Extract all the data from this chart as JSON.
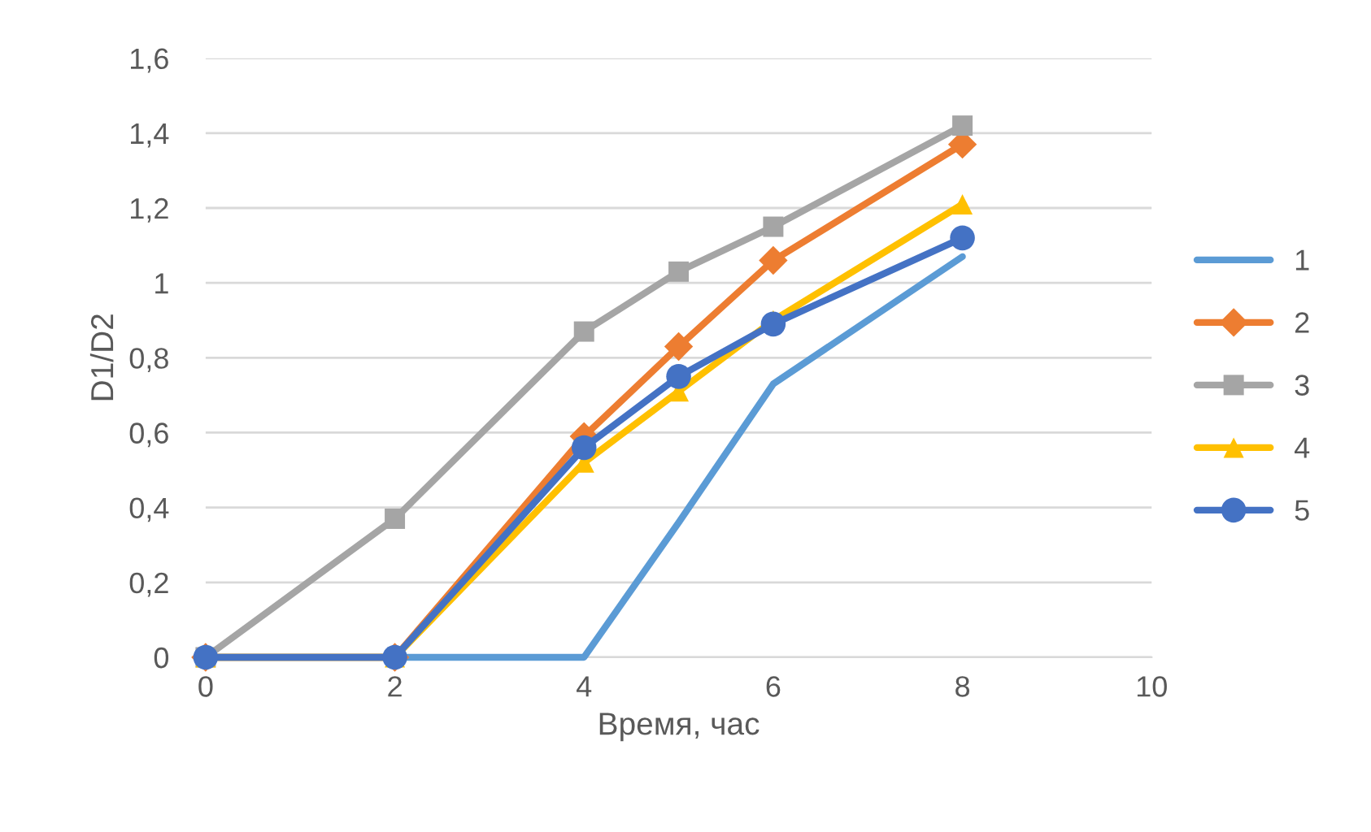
{
  "chart_data": {
    "type": "line",
    "xlabel": "Время, час",
    "ylabel": "D1/D2",
    "x": [
      0,
      2,
      4,
      5,
      6,
      8
    ],
    "series": [
      {
        "name": "1",
        "color": "#5b9bd5",
        "marker": "none",
        "values": [
          0,
          0,
          0,
          0.36,
          0.73,
          1.07
        ]
      },
      {
        "name": "2",
        "color": "#ed7d31",
        "marker": "diamond",
        "values": [
          0,
          0,
          0.59,
          0.83,
          1.06,
          1.37
        ]
      },
      {
        "name": "3",
        "color": "#a5a5a5",
        "marker": "square",
        "values": [
          0,
          0.37,
          0.87,
          1.03,
          1.15,
          1.42
        ]
      },
      {
        "name": "4",
        "color": "#ffc000",
        "marker": "triangle",
        "values": [
          0,
          0,
          0.52,
          0.71,
          0.9,
          1.21
        ]
      },
      {
        "name": "5",
        "color": "#4472c4",
        "marker": "circle",
        "values": [
          0,
          0,
          0.56,
          0.75,
          0.89,
          1.12
        ]
      }
    ],
    "xlim": [
      0,
      10
    ],
    "xticks": [
      0,
      2,
      4,
      6,
      8,
      10
    ],
    "ylim": [
      0,
      1.6
    ],
    "yticks": [
      0,
      {
        "value": 0.2,
        "label": "0,2"
      },
      {
        "value": 0.4,
        "label": "0,4"
      },
      {
        "value": 0.6,
        "label": "0,6"
      },
      {
        "value": 0.8,
        "label": "0,8"
      },
      1,
      {
        "value": 1.2,
        "label": "1,2"
      },
      {
        "value": 1.4,
        "label": "1,4"
      },
      {
        "value": 1.6,
        "label": "1,6"
      }
    ],
    "grid": "y",
    "legend": "right",
    "line_style": "solid"
  }
}
